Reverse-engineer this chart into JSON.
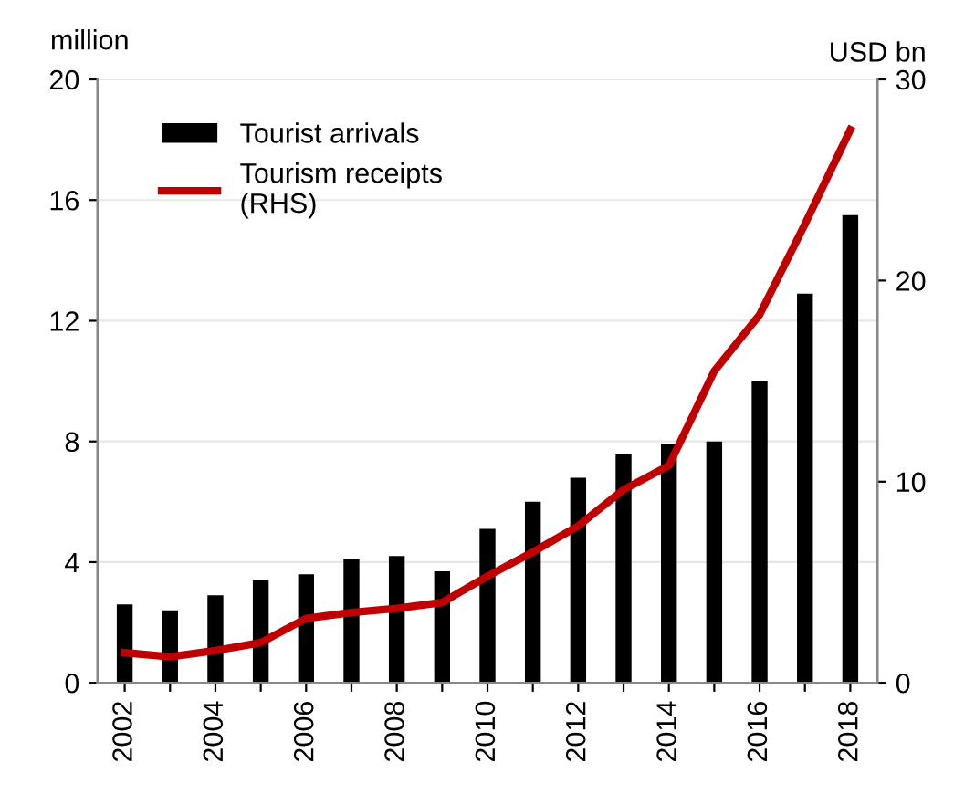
{
  "chart_data": {
    "type": "bar",
    "ylabel": "million",
    "y2label": "USD bn",
    "categories": [
      "2002",
      null,
      "2004",
      null,
      "2006",
      null,
      "2008",
      null,
      "2010",
      null,
      "2012",
      null,
      "2014",
      null,
      "2016",
      null,
      "2018"
    ],
    "series": [
      {
        "name": "Tourist arrivals",
        "color": "#000000",
        "values": [
          2.6,
          2.4,
          2.9,
          3.4,
          3.6,
          4.1,
          4.2,
          3.7,
          5.1,
          6.0,
          6.8,
          7.6,
          7.9,
          8.0,
          10.0,
          12.9,
          15.5
        ]
      },
      {
        "name": "Tourism receipts\n(RHS)",
        "type": "line",
        "axis": "y2",
        "color": "#c00000",
        "values": [
          1.5,
          1.3,
          1.6,
          2.0,
          3.2,
          3.5,
          3.7,
          4.0,
          5.3,
          6.5,
          7.8,
          9.6,
          10.8,
          15.5,
          18.3,
          22.8,
          27.5
        ]
      }
    ],
    "ylim": [
      0,
      20
    ],
    "yticks": [
      0,
      4,
      8,
      12,
      16,
      20
    ],
    "y2lim": [
      0,
      30
    ],
    "y2ticks": [
      0,
      10,
      20,
      30
    ],
    "grid": "y",
    "legend": "top left"
  }
}
